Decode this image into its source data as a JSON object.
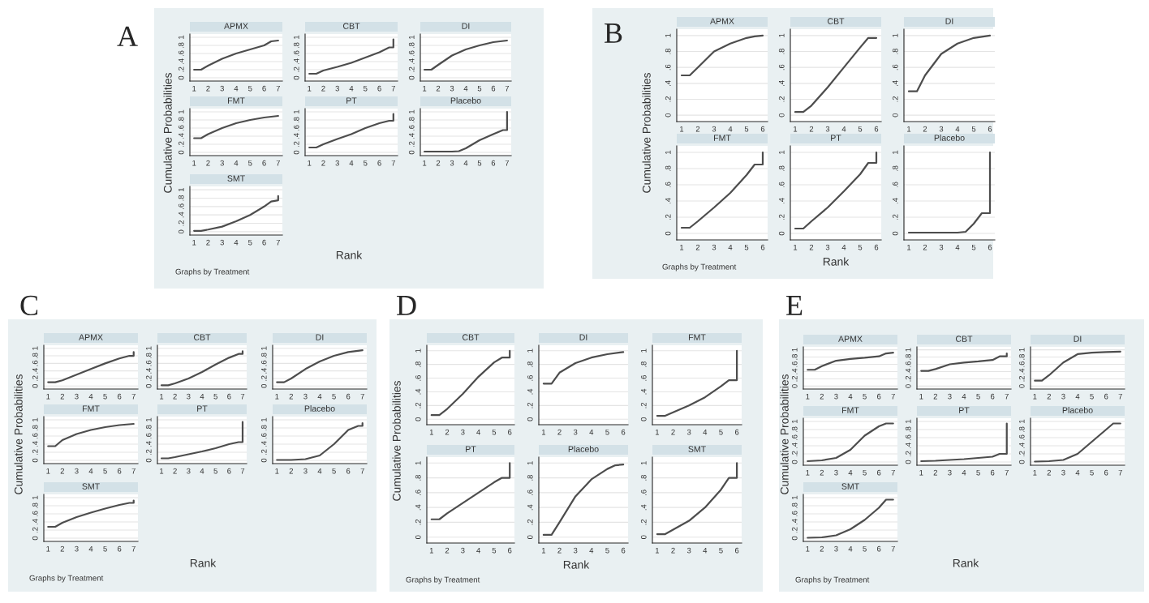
{
  "chart_data": [
    {
      "type": "line",
      "title": "APMX",
      "xlabel": "Rank",
      "ylabel": "Cumulative Probabilities",
      "annotations": [
        "A",
        "Graphs by Treatment"
      ],
      "x": [
        1,
        1.5,
        2,
        3,
        4,
        5,
        6,
        6.5,
        7
      ],
      "values": [
        0.2,
        0.2,
        0.3,
        0.47,
        0.6,
        0.7,
        0.8,
        0.9,
        0.92
      ],
      "xlim": [
        0.7,
        7.3
      ],
      "ylim": [
        -0.08,
        1.08
      ],
      "xticks": [
        1,
        2,
        3,
        4,
        5,
        6,
        7
      ],
      "yticks": [
        0,
        {
          "value": 0.2,
          "label": ".2"
        },
        {
          "value": 0.4,
          "label": ".4"
        },
        {
          "value": 0.6,
          "label": ".6"
        },
        {
          "value": 0.8,
          "label": ".8"
        },
        1
      ],
      "grid": "y"
    },
    {
      "type": "line",
      "title": "CBT",
      "x": [
        1,
        1.5,
        2,
        3,
        4,
        5,
        6,
        6.7,
        7,
        7
      ],
      "values": [
        0.1,
        0.1,
        0.18,
        0.27,
        0.37,
        0.5,
        0.63,
        0.75,
        0.75,
        0.95
      ],
      "xlim": [
        0.7,
        7.3
      ],
      "ylim": [
        -0.08,
        1.08
      ],
      "xticks": [
        1,
        2,
        3,
        4,
        5,
        6,
        7
      ],
      "yticks": [
        0,
        {
          "value": 0.2,
          "label": ".2"
        },
        {
          "value": 0.4,
          "label": ".4"
        },
        {
          "value": 0.6,
          "label": ".6"
        },
        {
          "value": 0.8,
          "label": ".8"
        },
        1
      ],
      "grid": "y"
    },
    {
      "type": "line",
      "title": "DI",
      "x": [
        1,
        1.5,
        2,
        3,
        4,
        5,
        6,
        7
      ],
      "values": [
        0.2,
        0.2,
        0.32,
        0.55,
        0.7,
        0.8,
        0.88,
        0.92
      ],
      "xlim": [
        0.7,
        7.3
      ],
      "ylim": [
        -0.08,
        1.08
      ],
      "xticks": [
        1,
        2,
        3,
        4,
        5,
        6,
        7
      ],
      "yticks": [
        0,
        {
          "value": 0.2,
          "label": ".2"
        },
        {
          "value": 0.4,
          "label": ".4"
        },
        {
          "value": 0.6,
          "label": ".6"
        },
        {
          "value": 0.8,
          "label": ".8"
        },
        1
      ],
      "grid": "y"
    },
    {
      "type": "line",
      "title": "FMT",
      "x": [
        1,
        1.5,
        2,
        3,
        4,
        5,
        6,
        7
      ],
      "values": [
        0.35,
        0.35,
        0.45,
        0.6,
        0.72,
        0.8,
        0.86,
        0.9
      ],
      "xlim": [
        0.7,
        7.3
      ],
      "ylim": [
        -0.08,
        1.08
      ],
      "xticks": [
        1,
        2,
        3,
        4,
        5,
        6,
        7
      ],
      "yticks": [
        0,
        {
          "value": 0.2,
          "label": ".2"
        },
        {
          "value": 0.4,
          "label": ".4"
        },
        {
          "value": 0.6,
          "label": ".6"
        },
        {
          "value": 0.8,
          "label": ".8"
        },
        1
      ],
      "grid": "y"
    },
    {
      "type": "line",
      "title": "PT",
      "x": [
        1,
        1.5,
        2,
        3,
        4,
        5,
        6,
        6.7,
        7,
        7
      ],
      "values": [
        0.12,
        0.12,
        0.2,
        0.33,
        0.45,
        0.6,
        0.72,
        0.78,
        0.78,
        0.95
      ],
      "xlim": [
        0.7,
        7.3
      ],
      "ylim": [
        -0.08,
        1.08
      ],
      "xticks": [
        1,
        2,
        3,
        4,
        5,
        6,
        7
      ],
      "yticks": [
        0,
        {
          "value": 0.2,
          "label": ".2"
        },
        {
          "value": 0.4,
          "label": ".4"
        },
        {
          "value": 0.6,
          "label": ".6"
        },
        {
          "value": 0.8,
          "label": ".8"
        },
        1
      ],
      "grid": "y"
    },
    {
      "type": "line",
      "title": "Placebo",
      "x": [
        1,
        2,
        3,
        3.5,
        4,
        5,
        6,
        6.7,
        7,
        7
      ],
      "values": [
        0.02,
        0.02,
        0.02,
        0.03,
        0.1,
        0.3,
        0.45,
        0.55,
        0.55,
        1
      ],
      "xlim": [
        0.7,
        7.3
      ],
      "ylim": [
        -0.08,
        1.08
      ],
      "xticks": [
        1,
        2,
        3,
        4,
        5,
        6,
        7
      ],
      "yticks": [
        0,
        {
          "value": 0.2,
          "label": ".2"
        },
        {
          "value": 0.4,
          "label": ".4"
        },
        {
          "value": 0.6,
          "label": ".6"
        },
        {
          "value": 0.8,
          "label": ".8"
        },
        1
      ],
      "grid": "y"
    },
    {
      "type": "line",
      "title": "SMT",
      "x": [
        1,
        1.5,
        2,
        3,
        4,
        5,
        6,
        6.5,
        7,
        7
      ],
      "values": [
        0.02,
        0.02,
        0.05,
        0.12,
        0.25,
        0.4,
        0.6,
        0.72,
        0.75,
        0.85
      ],
      "xlim": [
        0.7,
        7.3
      ],
      "ylim": [
        -0.08,
        1.08
      ],
      "xticks": [
        1,
        2,
        3,
        4,
        5,
        6,
        7
      ],
      "yticks": [
        0,
        {
          "value": 0.2,
          "label": ".2"
        },
        {
          "value": 0.4,
          "label": ".4"
        },
        {
          "value": 0.6,
          "label": ".6"
        },
        {
          "value": 0.8,
          "label": ".8"
        },
        1
      ],
      "grid": "y"
    },
    {
      "type": "line",
      "title": "APMX",
      "xlabel": "Rank",
      "ylabel": "Cumulative Probabilities",
      "annotations": [
        "B",
        "Graphs by Treatment"
      ],
      "x": [
        1,
        1.5,
        2,
        3,
        4,
        5,
        5.5,
        6
      ],
      "values": [
        0.5,
        0.5,
        0.6,
        0.8,
        0.9,
        0.97,
        0.99,
        1
      ],
      "xlim": [
        0.7,
        6.3
      ],
      "ylim": [
        -0.08,
        1.08
      ],
      "xticks": [
        1,
        2,
        3,
        4,
        5,
        6
      ],
      "yticks": [
        0,
        {
          "value": 0.2,
          "label": ".2"
        },
        {
          "value": 0.4,
          "label": ".4"
        },
        {
          "value": 0.6,
          "label": ".6"
        },
        {
          "value": 0.8,
          "label": ".8"
        },
        1
      ],
      "grid": "y"
    },
    {
      "type": "line",
      "title": "CBT",
      "x": [
        1,
        1.5,
        2,
        3,
        4,
        5,
        5.5,
        6
      ],
      "values": [
        0.04,
        0.04,
        0.12,
        0.35,
        0.6,
        0.85,
        0.97,
        0.97
      ],
      "xlim": [
        0.7,
        6.3
      ],
      "ylim": [
        -0.08,
        1.08
      ],
      "xticks": [
        1,
        2,
        3,
        4,
        5,
        6
      ],
      "yticks": [
        0,
        {
          "value": 0.2,
          "label": ".2"
        },
        {
          "value": 0.4,
          "label": ".4"
        },
        {
          "value": 0.6,
          "label": ".6"
        },
        {
          "value": 0.8,
          "label": ".8"
        },
        1
      ],
      "grid": "y"
    },
    {
      "type": "line",
      "title": "DI",
      "x": [
        1,
        1.5,
        2,
        3,
        4,
        5,
        6
      ],
      "values": [
        0.3,
        0.3,
        0.5,
        0.77,
        0.9,
        0.97,
        1
      ],
      "xlim": [
        0.7,
        6.3
      ],
      "ylim": [
        -0.08,
        1.08
      ],
      "xticks": [
        1,
        2,
        3,
        4,
        5,
        6
      ],
      "yticks": [
        0,
        {
          "value": 0.2,
          "label": ".2"
        },
        {
          "value": 0.4,
          "label": ".4"
        },
        {
          "value": 0.6,
          "label": ".6"
        },
        {
          "value": 0.8,
          "label": ".8"
        },
        1
      ],
      "grid": "y"
    },
    {
      "type": "line",
      "title": "FMT",
      "x": [
        1,
        1.5,
        2,
        3,
        4,
        5,
        5.5,
        6,
        6
      ],
      "values": [
        0.07,
        0.07,
        0.15,
        0.32,
        0.5,
        0.72,
        0.85,
        0.85,
        1
      ],
      "xlim": [
        0.7,
        6.3
      ],
      "ylim": [
        -0.08,
        1.08
      ],
      "xticks": [
        1,
        2,
        3,
        4,
        5,
        6
      ],
      "yticks": [
        0,
        {
          "value": 0.2,
          "label": ".2"
        },
        {
          "value": 0.4,
          "label": ".4"
        },
        {
          "value": 0.6,
          "label": ".6"
        },
        {
          "value": 0.8,
          "label": ".8"
        },
        1
      ],
      "grid": "y"
    },
    {
      "type": "line",
      "title": "PT",
      "x": [
        1,
        1.5,
        2,
        3,
        4,
        5,
        5.5,
        6,
        6
      ],
      "values": [
        0.06,
        0.06,
        0.15,
        0.32,
        0.52,
        0.73,
        0.87,
        0.87,
        1
      ],
      "xlim": [
        0.7,
        6.3
      ],
      "ylim": [
        -0.08,
        1.08
      ],
      "xticks": [
        1,
        2,
        3,
        4,
        5,
        6
      ],
      "yticks": [
        0,
        {
          "value": 0.2,
          "label": ".2"
        },
        {
          "value": 0.4,
          "label": ".4"
        },
        {
          "value": 0.6,
          "label": ".6"
        },
        {
          "value": 0.8,
          "label": ".8"
        },
        1
      ],
      "grid": "y"
    },
    {
      "type": "line",
      "title": "Placebo",
      "x": [
        1,
        2,
        3,
        4,
        4.5,
        5,
        5.5,
        6,
        6
      ],
      "values": [
        0.01,
        0.01,
        0.01,
        0.01,
        0.02,
        0.12,
        0.25,
        0.25,
        1
      ],
      "xlim": [
        0.7,
        6.3
      ],
      "ylim": [
        -0.08,
        1.08
      ],
      "xticks": [
        1,
        2,
        3,
        4,
        5,
        6
      ],
      "yticks": [
        0,
        {
          "value": 0.2,
          "label": ".2"
        },
        {
          "value": 0.4,
          "label": ".4"
        },
        {
          "value": 0.6,
          "label": ".6"
        },
        {
          "value": 0.8,
          "label": ".8"
        },
        1
      ],
      "grid": "y"
    },
    {
      "type": "line",
      "title": "APMX",
      "xlabel": "Rank",
      "ylabel": "Cumulative Probabilities",
      "annotations": [
        "C",
        "Graphs by Treatment"
      ],
      "x": [
        1,
        1.5,
        2,
        3,
        4,
        5,
        6,
        6.7,
        7,
        7
      ],
      "values": [
        0.1,
        0.1,
        0.15,
        0.3,
        0.45,
        0.6,
        0.73,
        0.8,
        0.8,
        0.9
      ],
      "xlim": [
        0.7,
        7.3
      ],
      "ylim": [
        -0.08,
        1.08
      ],
      "xticks": [
        1,
        2,
        3,
        4,
        5,
        6,
        7
      ],
      "yticks": [
        0,
        {
          "value": 0.2,
          "label": ".2"
        },
        {
          "value": 0.4,
          "label": ".4"
        },
        {
          "value": 0.6,
          "label": ".6"
        },
        {
          "value": 0.8,
          "label": ".8"
        },
        1
      ],
      "grid": "y"
    },
    {
      "type": "line",
      "title": "CBT",
      "x": [
        1,
        1.5,
        2,
        3,
        4,
        5,
        6,
        6.7,
        7,
        7
      ],
      "values": [
        0.02,
        0.02,
        0.07,
        0.2,
        0.37,
        0.57,
        0.75,
        0.85,
        0.85,
        0.92
      ],
      "xlim": [
        0.7,
        7.3
      ],
      "ylim": [
        -0.08,
        1.08
      ],
      "xticks": [
        1,
        2,
        3,
        4,
        5,
        6,
        7
      ],
      "yticks": [
        0,
        {
          "value": 0.2,
          "label": ".2"
        },
        {
          "value": 0.4,
          "label": ".4"
        },
        {
          "value": 0.6,
          "label": ".6"
        },
        {
          "value": 0.8,
          "label": ".8"
        },
        1
      ],
      "grid": "y"
    },
    {
      "type": "line",
      "title": "DI",
      "x": [
        1,
        1.5,
        2,
        3,
        4,
        5,
        6,
        7
      ],
      "values": [
        0.1,
        0.1,
        0.2,
        0.45,
        0.65,
        0.8,
        0.9,
        0.95
      ],
      "xlim": [
        0.7,
        7.3
      ],
      "ylim": [
        -0.08,
        1.08
      ],
      "xticks": [
        1,
        2,
        3,
        4,
        5,
        6,
        7
      ],
      "yticks": [
        0,
        {
          "value": 0.2,
          "label": ".2"
        },
        {
          "value": 0.4,
          "label": ".4"
        },
        {
          "value": 0.6,
          "label": ".6"
        },
        {
          "value": 0.8,
          "label": ".8"
        },
        1
      ],
      "grid": "y"
    },
    {
      "type": "line",
      "title": "FMT",
      "x": [
        1,
        1.5,
        2,
        3,
        4,
        5,
        6,
        7
      ],
      "values": [
        0.35,
        0.35,
        0.5,
        0.65,
        0.75,
        0.82,
        0.87,
        0.9
      ],
      "xlim": [
        0.7,
        7.3
      ],
      "ylim": [
        -0.08,
        1.08
      ],
      "xticks": [
        1,
        2,
        3,
        4,
        5,
        6,
        7
      ],
      "yticks": [
        0,
        {
          "value": 0.2,
          "label": ".2"
        },
        {
          "value": 0.4,
          "label": ".4"
        },
        {
          "value": 0.6,
          "label": ".6"
        },
        {
          "value": 0.8,
          "label": ".8"
        },
        1
      ],
      "grid": "y"
    },
    {
      "type": "line",
      "title": "PT",
      "x": [
        1,
        1.5,
        2,
        3,
        4,
        5,
        6,
        6.7,
        7,
        7
      ],
      "values": [
        0.05,
        0.05,
        0.08,
        0.15,
        0.22,
        0.3,
        0.4,
        0.45,
        0.45,
        0.95
      ],
      "xlim": [
        0.7,
        7.3
      ],
      "ylim": [
        -0.08,
        1.08
      ],
      "xticks": [
        1,
        2,
        3,
        4,
        5,
        6,
        7
      ],
      "yticks": [
        0,
        {
          "value": 0.2,
          "label": ".2"
        },
        {
          "value": 0.4,
          "label": ".4"
        },
        {
          "value": 0.6,
          "label": ".6"
        },
        {
          "value": 0.8,
          "label": ".8"
        },
        1
      ],
      "grid": "y"
    },
    {
      "type": "line",
      "title": "Placebo",
      "x": [
        1,
        2,
        3,
        4,
        5,
        6,
        6.7,
        7,
        7
      ],
      "values": [
        0.01,
        0.01,
        0.03,
        0.12,
        0.4,
        0.75,
        0.85,
        0.85,
        0.92
      ],
      "xlim": [
        0.7,
        7.3
      ],
      "ylim": [
        -0.08,
        1.08
      ],
      "xticks": [
        1,
        2,
        3,
        4,
        5,
        6,
        7
      ],
      "yticks": [
        0,
        {
          "value": 0.2,
          "label": ".2"
        },
        {
          "value": 0.4,
          "label": ".4"
        },
        {
          "value": 0.6,
          "label": ".6"
        },
        {
          "value": 0.8,
          "label": ".8"
        },
        1
      ],
      "grid": "y"
    },
    {
      "type": "line",
      "title": "SMT",
      "x": [
        1,
        1.5,
        2,
        3,
        4,
        5,
        6,
        6.7,
        7,
        7
      ],
      "values": [
        0.28,
        0.28,
        0.38,
        0.52,
        0.63,
        0.73,
        0.82,
        0.87,
        0.87,
        0.93
      ],
      "xlim": [
        0.7,
        7.3
      ],
      "ylim": [
        -0.08,
        1.08
      ],
      "xticks": [
        1,
        2,
        3,
        4,
        5,
        6,
        7
      ],
      "yticks": [
        0,
        {
          "value": 0.2,
          "label": ".2"
        },
        {
          "value": 0.4,
          "label": ".4"
        },
        {
          "value": 0.6,
          "label": ".6"
        },
        {
          "value": 0.8,
          "label": ".8"
        },
        1
      ],
      "grid": "y"
    },
    {
      "type": "line",
      "title": "CBT",
      "xlabel": "Rank",
      "ylabel": "Cumulative Probabilities",
      "annotations": [
        "D",
        "Graphs by Treatment"
      ],
      "x": [
        1,
        1.5,
        2,
        3,
        4,
        5,
        5.5,
        6,
        6
      ],
      "values": [
        0.06,
        0.06,
        0.15,
        0.37,
        0.62,
        0.83,
        0.9,
        0.9,
        1
      ],
      "xlim": [
        0.7,
        6.3
      ],
      "ylim": [
        -0.08,
        1.08
      ],
      "xticks": [
        1,
        2,
        3,
        4,
        5,
        6
      ],
      "yticks": [
        0,
        {
          "value": 0.2,
          "label": ".2"
        },
        {
          "value": 0.4,
          "label": ".4"
        },
        {
          "value": 0.6,
          "label": ".6"
        },
        {
          "value": 0.8,
          "label": ".8"
        },
        1
      ],
      "grid": "y"
    },
    {
      "type": "line",
      "title": "DI",
      "x": [
        1,
        1.5,
        2,
        3,
        4,
        5,
        6
      ],
      "values": [
        0.52,
        0.52,
        0.68,
        0.82,
        0.9,
        0.95,
        0.98
      ],
      "xlim": [
        0.7,
        6.3
      ],
      "ylim": [
        -0.08,
        1.08
      ],
      "xticks": [
        1,
        2,
        3,
        4,
        5,
        6
      ],
      "yticks": [
        0,
        {
          "value": 0.2,
          "label": ".2"
        },
        {
          "value": 0.4,
          "label": ".4"
        },
        {
          "value": 0.6,
          "label": ".6"
        },
        {
          "value": 0.8,
          "label": ".8"
        },
        1
      ],
      "grid": "y"
    },
    {
      "type": "line",
      "title": "FMT",
      "x": [
        1,
        1.5,
        2,
        3,
        4,
        5,
        5.5,
        6,
        6
      ],
      "values": [
        0.05,
        0.05,
        0.1,
        0.2,
        0.32,
        0.48,
        0.57,
        0.57,
        1
      ],
      "xlim": [
        0.7,
        6.3
      ],
      "ylim": [
        -0.08,
        1.08
      ],
      "xticks": [
        1,
        2,
        3,
        4,
        5,
        6
      ],
      "yticks": [
        0,
        {
          "value": 0.2,
          "label": ".2"
        },
        {
          "value": 0.4,
          "label": ".4"
        },
        {
          "value": 0.6,
          "label": ".6"
        },
        {
          "value": 0.8,
          "label": ".8"
        },
        1
      ],
      "grid": "y"
    },
    {
      "type": "line",
      "title": "PT",
      "x": [
        1,
        1.5,
        2,
        3,
        4,
        5,
        5.5,
        6,
        6
      ],
      "values": [
        0.24,
        0.24,
        0.32,
        0.46,
        0.6,
        0.74,
        0.8,
        0.8,
        1
      ],
      "xlim": [
        0.7,
        6.3
      ],
      "ylim": [
        -0.08,
        1.08
      ],
      "xticks": [
        1,
        2,
        3,
        4,
        5,
        6
      ],
      "yticks": [
        0,
        {
          "value": 0.2,
          "label": ".2"
        },
        {
          "value": 0.4,
          "label": ".4"
        },
        {
          "value": 0.6,
          "label": ".6"
        },
        {
          "value": 0.8,
          "label": ".8"
        },
        1
      ],
      "grid": "y"
    },
    {
      "type": "line",
      "title": "Placebo",
      "x": [
        1,
        1.5,
        2,
        3,
        4,
        5,
        5.5,
        6
      ],
      "values": [
        0.03,
        0.03,
        0.2,
        0.55,
        0.78,
        0.92,
        0.97,
        0.98
      ],
      "xlim": [
        0.7,
        6.3
      ],
      "ylim": [
        -0.08,
        1.08
      ],
      "xticks": [
        1,
        2,
        3,
        4,
        5,
        6
      ],
      "yticks": [
        0,
        {
          "value": 0.2,
          "label": ".2"
        },
        {
          "value": 0.4,
          "label": ".4"
        },
        {
          "value": 0.6,
          "label": ".6"
        },
        {
          "value": 0.8,
          "label": ".8"
        },
        1
      ],
      "grid": "y"
    },
    {
      "type": "line",
      "title": "SMT",
      "x": [
        1,
        1.5,
        2,
        3,
        4,
        5,
        5.5,
        6,
        6
      ],
      "values": [
        0.04,
        0.04,
        0.1,
        0.22,
        0.4,
        0.64,
        0.8,
        0.8,
        1
      ],
      "xlim": [
        0.7,
        6.3
      ],
      "ylim": [
        -0.08,
        1.08
      ],
      "xticks": [
        1,
        2,
        3,
        4,
        5,
        6
      ],
      "yticks": [
        0,
        {
          "value": 0.2,
          "label": ".2"
        },
        {
          "value": 0.4,
          "label": ".4"
        },
        {
          "value": 0.6,
          "label": ".6"
        },
        {
          "value": 0.8,
          "label": ".8"
        },
        1
      ],
      "grid": "y"
    },
    {
      "type": "line",
      "title": "APMX",
      "xlabel": "Rank",
      "ylabel": "Cumulative Probabilities",
      "annotations": [
        "E",
        "Graphs by Treatment"
      ],
      "x": [
        1,
        1.5,
        2,
        3,
        4,
        5,
        6,
        6.5,
        7
      ],
      "values": [
        0.45,
        0.45,
        0.55,
        0.7,
        0.75,
        0.78,
        0.82,
        0.9,
        0.92
      ],
      "xlim": [
        0.7,
        7.3
      ],
      "ylim": [
        -0.08,
        1.08
      ],
      "xticks": [
        1,
        2,
        3,
        4,
        5,
        6,
        7
      ],
      "yticks": [
        0,
        {
          "value": 0.2,
          "label": ".2"
        },
        {
          "value": 0.4,
          "label": ".4"
        },
        {
          "value": 0.6,
          "label": ".6"
        },
        {
          "value": 0.8,
          "label": ".8"
        },
        1
      ],
      "grid": "y"
    },
    {
      "type": "line",
      "title": "CBT",
      "x": [
        1,
        1.5,
        2,
        3,
        4,
        5,
        6,
        6.5,
        7,
        7
      ],
      "values": [
        0.42,
        0.42,
        0.47,
        0.6,
        0.65,
        0.68,
        0.72,
        0.82,
        0.82,
        0.9
      ],
      "xlim": [
        0.7,
        7.3
      ],
      "ylim": [
        -0.08,
        1.08
      ],
      "xticks": [
        1,
        2,
        3,
        4,
        5,
        6,
        7
      ],
      "yticks": [
        0,
        {
          "value": 0.2,
          "label": ".2"
        },
        {
          "value": 0.4,
          "label": ".4"
        },
        {
          "value": 0.6,
          "label": ".6"
        },
        {
          "value": 0.8,
          "label": ".8"
        },
        1
      ],
      "grid": "y"
    },
    {
      "type": "line",
      "title": "DI",
      "x": [
        1,
        1.5,
        2,
        3,
        4,
        5,
        6,
        7
      ],
      "values": [
        0.15,
        0.15,
        0.3,
        0.65,
        0.88,
        0.92,
        0.94,
        0.95
      ],
      "xlim": [
        0.7,
        7.3
      ],
      "ylim": [
        -0.08,
        1.08
      ],
      "xticks": [
        1,
        2,
        3,
        4,
        5,
        6,
        7
      ],
      "yticks": [
        0,
        {
          "value": 0.2,
          "label": ".2"
        },
        {
          "value": 0.4,
          "label": ".4"
        },
        {
          "value": 0.6,
          "label": ".6"
        },
        {
          "value": 0.8,
          "label": ".8"
        },
        1
      ],
      "grid": "y"
    },
    {
      "type": "line",
      "title": "FMT",
      "x": [
        1,
        2,
        3,
        4,
        5,
        6,
        6.5,
        7
      ],
      "values": [
        0.02,
        0.04,
        0.1,
        0.3,
        0.65,
        0.88,
        0.95,
        0.95
      ],
      "xlim": [
        0.7,
        7.3
      ],
      "ylim": [
        -0.08,
        1.08
      ],
      "xticks": [
        1,
        2,
        3,
        4,
        5,
        6,
        7
      ],
      "yticks": [
        0,
        {
          "value": 0.2,
          "label": ".2"
        },
        {
          "value": 0.4,
          "label": ".4"
        },
        {
          "value": 0.6,
          "label": ".6"
        },
        {
          "value": 0.8,
          "label": ".8"
        },
        1
      ],
      "grid": "y"
    },
    {
      "type": "line",
      "title": "PT",
      "x": [
        1,
        2,
        3,
        4,
        5,
        6,
        6.5,
        7,
        7
      ],
      "values": [
        0.02,
        0.03,
        0.05,
        0.07,
        0.1,
        0.13,
        0.2,
        0.2,
        0.95
      ],
      "xlim": [
        0.7,
        7.3
      ],
      "ylim": [
        -0.08,
        1.08
      ],
      "xticks": [
        1,
        2,
        3,
        4,
        5,
        6,
        7
      ],
      "yticks": [
        0,
        {
          "value": 0.2,
          "label": ".2"
        },
        {
          "value": 0.4,
          "label": ".4"
        },
        {
          "value": 0.6,
          "label": ".6"
        },
        {
          "value": 0.8,
          "label": ".8"
        },
        1
      ],
      "grid": "y"
    },
    {
      "type": "line",
      "title": "Placebo",
      "x": [
        1,
        2,
        3,
        4,
        5,
        6,
        6.5,
        7
      ],
      "values": [
        0.01,
        0.02,
        0.05,
        0.2,
        0.5,
        0.8,
        0.95,
        0.95
      ],
      "xlim": [
        0.7,
        7.3
      ],
      "ylim": [
        -0.08,
        1.08
      ],
      "xticks": [
        1,
        2,
        3,
        4,
        5,
        6,
        7
      ],
      "yticks": [
        0,
        {
          "value": 0.2,
          "label": ".2"
        },
        {
          "value": 0.4,
          "label": ".4"
        },
        {
          "value": 0.6,
          "label": ".6"
        },
        {
          "value": 0.8,
          "label": ".8"
        },
        1
      ],
      "grid": "y"
    },
    {
      "type": "line",
      "title": "SMT",
      "x": [
        1,
        2,
        3,
        4,
        5,
        6,
        6.5,
        7
      ],
      "values": [
        0.01,
        0.02,
        0.07,
        0.22,
        0.45,
        0.75,
        0.95,
        0.95
      ],
      "xlim": [
        0.7,
        7.3
      ],
      "ylim": [
        -0.08,
        1.08
      ],
      "xticks": [
        1,
        2,
        3,
        4,
        5,
        6,
        7
      ],
      "yticks": [
        0,
        {
          "value": 0.2,
          "label": ".2"
        },
        {
          "value": 0.4,
          "label": ".4"
        },
        {
          "value": 0.6,
          "label": ".6"
        },
        {
          "value": 0.8,
          "label": ".8"
        },
        1
      ],
      "grid": "y"
    }
  ]
}
